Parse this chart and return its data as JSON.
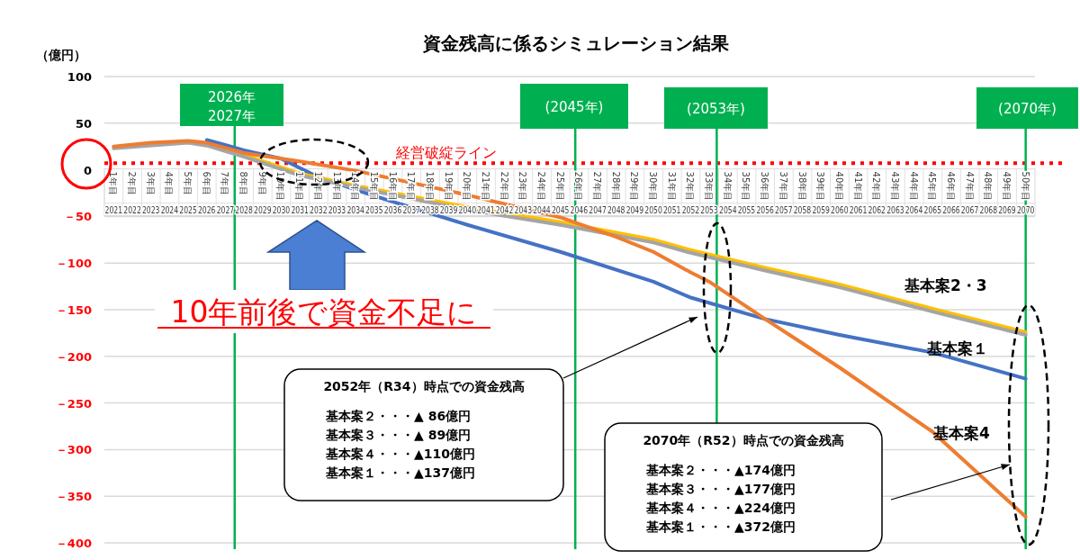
{
  "chart_data": {
    "type": "line",
    "title": "資金残高に係るシミュレーション結果",
    "ylabel": "（億円）",
    "xlim": [
      2020.5,
      2070.5
    ],
    "ylim": [
      -400,
      100
    ],
    "xticks": [
      2021,
      2022,
      2023,
      2024,
      2025,
      2026,
      2027,
      2028,
      2029,
      2030,
      2031,
      2032,
      2033,
      2034,
      2035,
      2036,
      2037,
      2038,
      2039,
      2040,
      2041,
      2042,
      2043,
      2044,
      2045,
      2046,
      2047,
      2048,
      2049,
      2050,
      2051,
      2052,
      2053,
      2054,
      2055,
      2056,
      2057,
      2058,
      2059,
      2060,
      2061,
      2062,
      2063,
      2064,
      2065,
      2066,
      2067,
      2068,
      2069,
      2070
    ],
    "x2lim": [
      0.5,
      50.5
    ],
    "x2ticks": [
      {
        "value": 1,
        "label": "1年目"
      },
      {
        "value": 2,
        "label": "2年目"
      },
      {
        "value": 3,
        "label": "3年目"
      },
      {
        "value": 4,
        "label": "4年目"
      },
      {
        "value": 5,
        "label": "5年目"
      },
      {
        "value": 6,
        "label": "6年目"
      },
      {
        "value": 7,
        "label": "7年目"
      },
      {
        "value": 8,
        "label": "8年目"
      },
      {
        "value": 9,
        "label": "9年目"
      },
      {
        "value": 10,
        "label": "10年目"
      },
      {
        "value": 11,
        "label": "11年目"
      },
      {
        "value": 12,
        "label": "12年目"
      },
      {
        "value": 13,
        "label": "13年目"
      },
      {
        "value": 14,
        "label": "14年目"
      },
      {
        "value": 15,
        "label": "15年目"
      },
      {
        "value": 16,
        "label": "16年目"
      },
      {
        "value": 17,
        "label": "17年目"
      },
      {
        "value": 18,
        "label": "18年目"
      },
      {
        "value": 19,
        "label": "19年目"
      },
      {
        "value": 20,
        "label": "20年目"
      },
      {
        "value": 21,
        "label": "21年目"
      },
      {
        "value": 22,
        "label": "22年目"
      },
      {
        "value": 23,
        "label": "23年目"
      },
      {
        "value": 24,
        "label": "24年目"
      },
      {
        "value": 25,
        "label": "25年目"
      },
      {
        "value": 26,
        "label": "26年目"
      },
      {
        "value": 27,
        "label": "27年目"
      },
      {
        "value": 28,
        "label": "28年目"
      },
      {
        "value": 29,
        "label": "29年目"
      },
      {
        "value": 30,
        "label": "30年目"
      },
      {
        "value": 31,
        "label": "31年目"
      },
      {
        "value": 32,
        "label": "32年目"
      },
      {
        "value": 33,
        "label": "33年目"
      },
      {
        "value": 34,
        "label": "34年目"
      },
      {
        "value": 35,
        "label": "35年目"
      },
      {
        "value": 36,
        "label": "36年目"
      },
      {
        "value": 37,
        "label": "37年目"
      },
      {
        "value": 38,
        "label": "38年目"
      },
      {
        "value": 39,
        "label": "39年目"
      },
      {
        "value": 40,
        "label": "40年目"
      },
      {
        "value": 41,
        "label": "41年目"
      },
      {
        "value": 42,
        "label": "42年目"
      },
      {
        "value": 43,
        "label": "43年目"
      },
      {
        "value": 44,
        "label": "44年目"
      },
      {
        "value": 45,
        "label": "45年目"
      },
      {
        "value": 46,
        "label": "46年目"
      },
      {
        "value": 47,
        "label": "47年目"
      },
      {
        "value": 48,
        "label": "48年目"
      },
      {
        "value": 49,
        "label": "49年目"
      },
      {
        "value": 50,
        "label": "50年目"
      }
    ],
    "yticks": [
      100,
      50,
      0,
      {
        "value": -50,
        "label": "－50"
      },
      {
        "value": -100,
        "label": "－100"
      },
      {
        "value": -150,
        "label": "－150"
      },
      {
        "value": -200,
        "label": "－200"
      },
      {
        "value": -250,
        "label": "－250"
      },
      {
        "value": -300,
        "label": "－300"
      },
      {
        "value": -350,
        "label": "－350"
      },
      {
        "value": -400,
        "label": "－400"
      }
    ],
    "grid": "y",
    "series": [
      {
        "color": "#4472c4",
        "x": [
          2026,
          2028,
          2030,
          2032,
          2035,
          2040,
          2045,
          2050,
          2052,
          2056,
          2060,
          2065,
          2070
        ],
        "values": [
          32,
          21,
          12,
          -8,
          -28,
          -59,
          -88,
          -120,
          -137,
          -160,
          -177,
          -196,
          -224
        ]
      },
      {
        "color": "#ffc000",
        "x": [
          2026,
          2028,
          2031,
          2034,
          2040,
          2045,
          2050,
          2052,
          2056,
          2060,
          2065,
          2070
        ],
        "values": [
          27,
          16,
          -4,
          -17,
          -40,
          -56,
          -75,
          -86,
          -105,
          -123,
          -149,
          -174
        ]
      },
      {
        "color": "#a5a5a5",
        "x": [
          2021,
          2025,
          2026,
          2028,
          2031,
          2034,
          2040,
          2045,
          2050,
          2052,
          2056,
          2060,
          2065,
          2070
        ],
        "values": [
          23,
          29,
          26,
          14,
          -6,
          -19,
          -43,
          -59,
          -78,
          -89,
          -108,
          -126,
          -152,
          -177
        ]
      },
      {
        "color": "#ed7d31",
        "x": [
          2021,
          2023,
          2025,
          2026,
          2028,
          2031,
          2034,
          2040,
          2045,
          2048,
          2050,
          2052,
          2053,
          2056,
          2058,
          2060,
          2065,
          2070
        ],
        "values": [
          25,
          29,
          31,
          29,
          18,
          9,
          -1,
          -27,
          -51,
          -72,
          -88,
          -110,
          -120,
          -160,
          -186,
          -212,
          -281,
          -372
        ]
      }
    ],
    "ref_lines": [
      {
        "axis": "y",
        "value": 7,
        "label": "経営破綻ライン",
        "color": "#ff0000",
        "line_style": "dotted"
      },
      {
        "axis": "x",
        "value": 2027.5,
        "label": "2026年\n2027年",
        "color": "#00b050"
      },
      {
        "axis": "x",
        "value": 2045.8,
        "label": "(2045年)",
        "color": "#00b050"
      },
      {
        "axis": "x",
        "value": 2053.4,
        "label": "(2053年)",
        "color": "#00b050"
      },
      {
        "axis": "x",
        "value": 2070,
        "label": "(2070年)",
        "color": "#00b050"
      }
    ],
    "annotations": [
      "10年前後で資金不足に",
      "2052年（R34）時点での資金残高",
      "基本案２・・・▲ 86億円",
      "基本案３・・・▲ 89億円",
      "基本案４・・・▲110億円",
      "基本案１・・・▲137億円",
      "2070年（R52）時点での資金残高",
      "基本案２・・・▲174億円",
      "基本案３・・・▲177億円",
      "基本案４・・・▲224億円",
      "基本案１・・・▲372億円",
      "基本案2・3",
      "基本案１",
      "基本案4"
    ]
  }
}
